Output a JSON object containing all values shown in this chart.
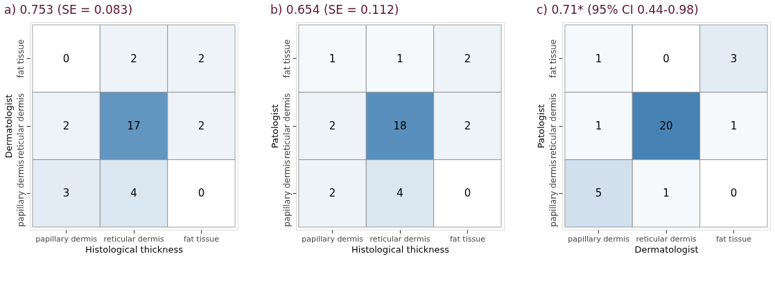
{
  "chart_data": [
    {
      "type": "heatmap",
      "title": "a) 0.753 (SE = 0.083)",
      "xlabel": "Histological thickness",
      "ylabel": "Dermatologist",
      "categories": [
        "papillary dermis",
        "reticular dermis",
        "fat tissue"
      ],
      "y_categories": [
        "fat tissue",
        "reticular dermis",
        "papillary dermis"
      ],
      "cells": [
        [
          0,
          2,
          2
        ],
        [
          2,
          17,
          2
        ],
        [
          3,
          4,
          0
        ]
      ],
      "data_labels": true
    },
    {
      "type": "heatmap",
      "title": "b) 0.654 (SE = 0.112)",
      "xlabel": "Histological thickness",
      "ylabel": "Patologist",
      "categories": [
        "papillary dermis",
        "reticular dermis",
        "fat tissue"
      ],
      "y_categories": [
        "fat tissue",
        "reticular dermis",
        "papillary dermis"
      ],
      "cells": [
        [
          1,
          1,
          2
        ],
        [
          2,
          18,
          2
        ],
        [
          2,
          4,
          0
        ]
      ],
      "data_labels": true
    },
    {
      "type": "heatmap",
      "title": "c) 0.71* (95% CI 0.44-0.98)",
      "xlabel": "Dermatologist",
      "ylabel": "Patologist",
      "categories": [
        "papillary dermis",
        "reticular dermis",
        "fat tissue"
      ],
      "y_categories": [
        "fat tissue",
        "reticular dermis",
        "papillary dermis"
      ],
      "cells": [
        [
          1,
          0,
          3
        ],
        [
          1,
          20,
          1
        ],
        [
          5,
          1,
          0
        ]
      ],
      "data_labels": true
    }
  ]
}
